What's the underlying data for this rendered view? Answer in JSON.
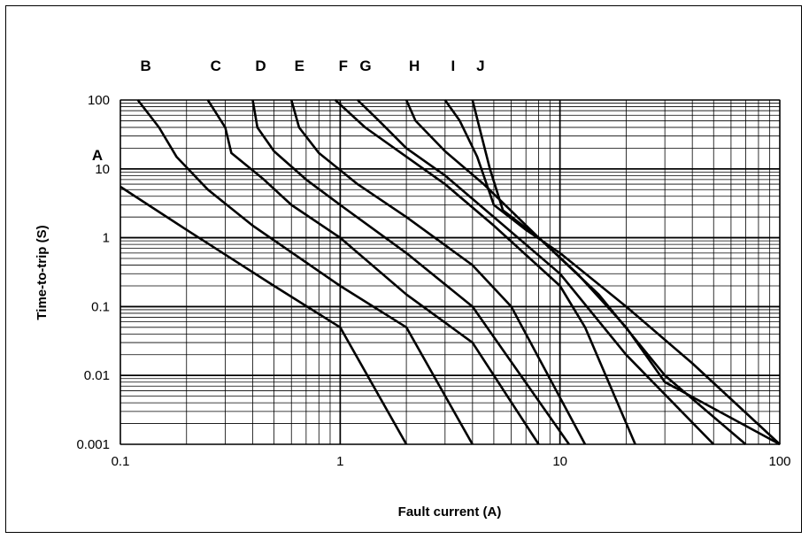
{
  "chart_data": {
    "type": "line",
    "title": "",
    "xlabel": "Fault current (A)",
    "ylabel": "Time-to-trip (S)",
    "x_scale": "log",
    "y_scale": "log",
    "xlim": [
      0.1,
      100
    ],
    "ylim": [
      0.001,
      100
    ],
    "x_ticks": [
      "0.1",
      "1",
      "10",
      "100"
    ],
    "y_ticks": [
      "0.001",
      "0.01",
      "0.1",
      "1",
      "10",
      "100"
    ],
    "grid": true,
    "legend": "none",
    "series": [
      {
        "name": "A",
        "points": [
          [
            0.1,
            5.5
          ],
          [
            0.2,
            1.3
          ],
          [
            0.5,
            0.2
          ],
          [
            1.0,
            0.05
          ],
          [
            2.0,
            0.001
          ]
        ]
      },
      {
        "name": "B",
        "points": [
          [
            0.12,
            100
          ],
          [
            0.15,
            40
          ],
          [
            0.18,
            15
          ],
          [
            0.25,
            5
          ],
          [
            0.4,
            1.5
          ],
          [
            1.0,
            0.2
          ],
          [
            2.0,
            0.05
          ],
          [
            4.0,
            0.001
          ]
        ]
      },
      {
        "name": "C",
        "points": [
          [
            0.25,
            100
          ],
          [
            0.3,
            40
          ],
          [
            0.32,
            17
          ],
          [
            0.45,
            7
          ],
          [
            0.6,
            3
          ],
          [
            1.0,
            1
          ],
          [
            2.0,
            0.15
          ],
          [
            4.0,
            0.03
          ],
          [
            8.0,
            0.001
          ]
        ]
      },
      {
        "name": "D",
        "points": [
          [
            0.4,
            100
          ],
          [
            0.42,
            40
          ],
          [
            0.5,
            18
          ],
          [
            0.7,
            7
          ],
          [
            1.0,
            3
          ],
          [
            2.0,
            0.6
          ],
          [
            4.0,
            0.1
          ],
          [
            11.0,
            0.001
          ]
        ]
      },
      {
        "name": "E",
        "points": [
          [
            0.6,
            100
          ],
          [
            0.65,
            40
          ],
          [
            0.8,
            17
          ],
          [
            1.2,
            6
          ],
          [
            2.0,
            2
          ],
          [
            4.0,
            0.4
          ],
          [
            6.0,
            0.1
          ],
          [
            13.0,
            0.001
          ]
        ]
      },
      {
        "name": "F",
        "points": [
          [
            0.95,
            100
          ],
          [
            1.3,
            40
          ],
          [
            2.0,
            15
          ],
          [
            3.0,
            6
          ],
          [
            5.0,
            1.5
          ],
          [
            10.0,
            0.2
          ],
          [
            13.0,
            0.05
          ],
          [
            22.0,
            0.001
          ]
        ]
      },
      {
        "name": "G",
        "points": [
          [
            1.2,
            100
          ],
          [
            1.5,
            50
          ],
          [
            2.0,
            20
          ],
          [
            3.0,
            8
          ],
          [
            5.0,
            2
          ],
          [
            10.0,
            0.3
          ],
          [
            20.0,
            0.02
          ],
          [
            50.0,
            0.001
          ]
        ]
      },
      {
        "name": "H",
        "points": [
          [
            2.0,
            100
          ],
          [
            2.2,
            50
          ],
          [
            3.0,
            18
          ],
          [
            4.5,
            6
          ],
          [
            8.0,
            1
          ],
          [
            15.0,
            0.15
          ],
          [
            30.0,
            0.01
          ],
          [
            70.0,
            0.001
          ]
        ]
      },
      {
        "name": "I",
        "points": [
          [
            3.0,
            100
          ],
          [
            3.5,
            50
          ],
          [
            4.2,
            15
          ],
          [
            5.0,
            3
          ],
          [
            7.0,
            1.3
          ],
          [
            10.0,
            0.6
          ],
          [
            20.0,
            0.1
          ],
          [
            40.0,
            0.015
          ],
          [
            100.0,
            0.001
          ]
        ]
      },
      {
        "name": "J",
        "points": [
          [
            4.0,
            100
          ],
          [
            4.3,
            40
          ],
          [
            4.8,
            10
          ],
          [
            5.5,
            2.5
          ],
          [
            8.0,
            1.0
          ],
          [
            12.0,
            0.3
          ],
          [
            20.0,
            0.05
          ],
          [
            30.0,
            0.008
          ],
          [
            100.0,
            0.001
          ]
        ]
      }
    ]
  }
}
